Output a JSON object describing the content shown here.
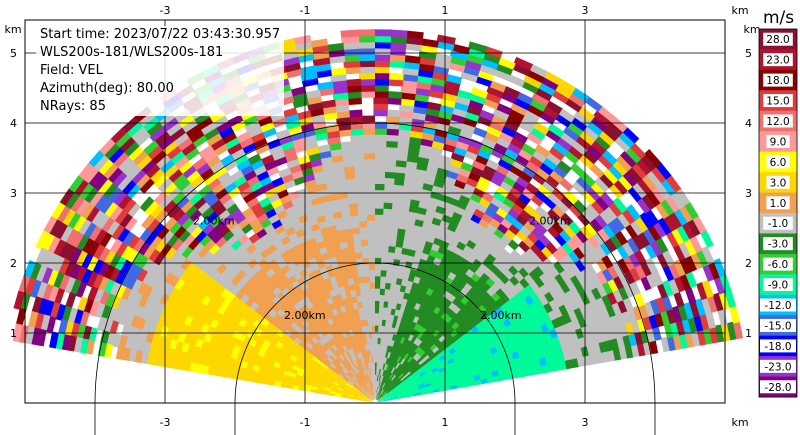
{
  "plot": {
    "x_ticks": [
      "-3",
      "-1",
      "1",
      "3"
    ],
    "y_ticks": [
      "1",
      "2",
      "3",
      "4",
      "5"
    ],
    "x_unit": "km",
    "y_unit": "km",
    "range_labels": [
      "2.00km",
      "2.00km",
      "2.00km",
      "2.00km"
    ]
  },
  "info": {
    "start_time": "Start time: 2023/07/22 03:43:30.957",
    "station": "WLS200s-181/WLS200s-181",
    "field": "Field: VEL",
    "azimuth": "Azimuth(deg): 80.00",
    "nrays": "NRays: 85"
  },
  "colorbar": {
    "title": "m/s",
    "levels": [
      {
        "label": "28.0",
        "color": "#8b0f2e"
      },
      {
        "label": "23.0",
        "color": "#b0132f"
      },
      {
        "label": "18.0",
        "color": "#8a0000"
      },
      {
        "label": "15.0",
        "color": "#e03c3c"
      },
      {
        "label": "12.0",
        "color": "#f07070"
      },
      {
        "label": "9.0",
        "color": "#ff9999"
      },
      {
        "label": "6.0",
        "color": "#ffff00"
      },
      {
        "label": "3.0",
        "color": "#ffd700"
      },
      {
        "label": "1.0",
        "color": "#f0a050"
      },
      {
        "label": "-1.0",
        "color": "#c0c0c0"
      },
      {
        "label": "-3.0",
        "color": "#228b22"
      },
      {
        "label": "-6.0",
        "color": "#32cd32"
      },
      {
        "label": "-9.0",
        "color": "#00fa9a"
      },
      {
        "label": "-12.0",
        "color": "#00bfff"
      },
      {
        "label": "-15.0",
        "color": "#4169e1"
      },
      {
        "label": "-18.0",
        "color": "#0000ff"
      },
      {
        "label": "-23.0",
        "color": "#9932cc"
      },
      {
        "label": "-28.0",
        "color": "#800080"
      }
    ]
  }
}
